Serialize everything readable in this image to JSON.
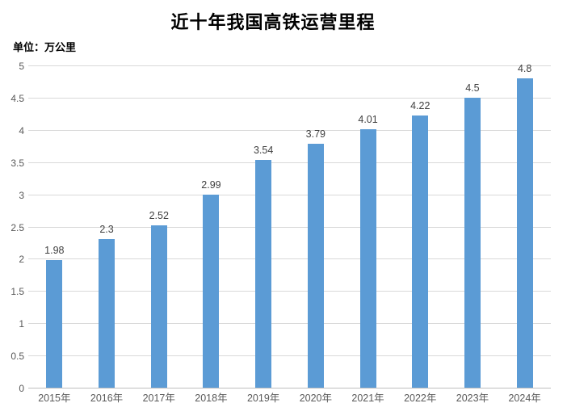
{
  "chart_data": {
    "type": "bar",
    "title": "近十年我国高铁运营里程",
    "unit_label": "单位：万公里",
    "categories": [
      "2015年",
      "2016年",
      "2017年",
      "2018年",
      "2019年",
      "2020年",
      "2021年",
      "2022年",
      "2023年",
      "2024年"
    ],
    "values": [
      1.98,
      2.3,
      2.52,
      2.99,
      3.54,
      3.79,
      4.01,
      4.22,
      4.5,
      4.8
    ],
    "data_labels": [
      "1.98",
      "2.3",
      "2.52",
      "2.99",
      "3.54",
      "3.79",
      "4.01",
      "4.22",
      "4.5",
      "4.8"
    ],
    "ylim": [
      0,
      5
    ],
    "ytick_step": 0.5,
    "ytick_labels": [
      "0",
      "0.5",
      "1",
      "1.5",
      "2",
      "2.5",
      "3",
      "3.5",
      "4",
      "4.5",
      "5"
    ],
    "xlabel": "",
    "ylabel": "",
    "grid": true,
    "legend": "none",
    "colors": {
      "bar": "#5b9bd5",
      "gridline": "#d9d9d9",
      "axis_line": "#bfbfbf",
      "axis_label": "#595959",
      "data_label": "#404040",
      "title": "#000000",
      "background": "#ffffff"
    }
  }
}
